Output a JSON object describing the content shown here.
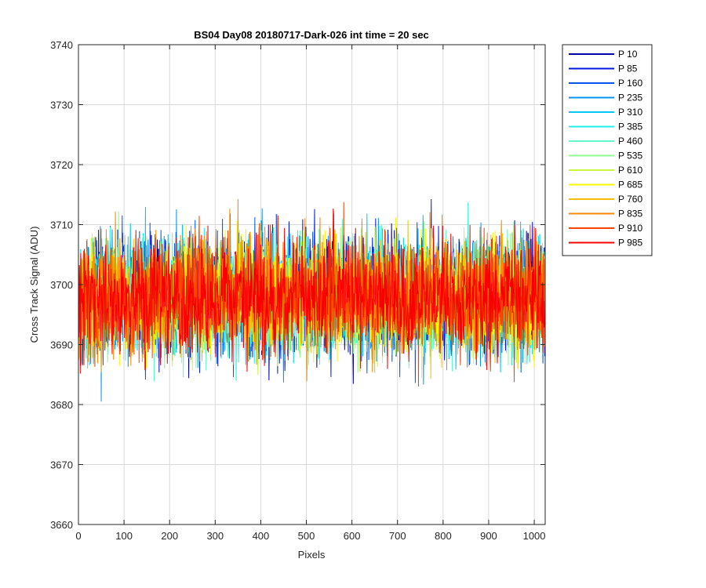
{
  "chart_data": {
    "type": "line",
    "title": "BS04 Day08 20180717-Dark-026 int time = 20 sec",
    "xlabel": "Pixels",
    "ylabel": "Cross Track Signal (ADU)",
    "xlim": [
      0,
      1024
    ],
    "ylim": [
      3660,
      3740
    ],
    "xticks": [
      0,
      100,
      200,
      300,
      400,
      500,
      600,
      700,
      800,
      900,
      1000
    ],
    "yticks": [
      3660,
      3670,
      3680,
      3690,
      3700,
      3710,
      3720,
      3730,
      3740
    ],
    "grid": true,
    "legend_position": "outside-top-right",
    "n_points": 1024,
    "series_mean": 3698,
    "series_spread": 7.5,
    "series": [
      {
        "name": "P 10",
        "color": "#0000aa"
      },
      {
        "name": "P 85",
        "color": "#0018e0"
      },
      {
        "name": "P 160",
        "color": "#0056f0"
      },
      {
        "name": "P 235",
        "color": "#0096f8"
      },
      {
        "name": "P 310",
        "color": "#00c8f8"
      },
      {
        "name": "P 385",
        "color": "#20f0e8"
      },
      {
        "name": "P 460",
        "color": "#60f8c8"
      },
      {
        "name": "P 535",
        "color": "#90f890"
      },
      {
        "name": "P 610",
        "color": "#c8f840"
      },
      {
        "name": "P 685",
        "color": "#f8f800"
      },
      {
        "name": "P 760",
        "color": "#f8c000"
      },
      {
        "name": "P 835",
        "color": "#f88800"
      },
      {
        "name": "P 910",
        "color": "#f84400"
      },
      {
        "name": "P 985",
        "color": "#f80000"
      }
    ]
  }
}
